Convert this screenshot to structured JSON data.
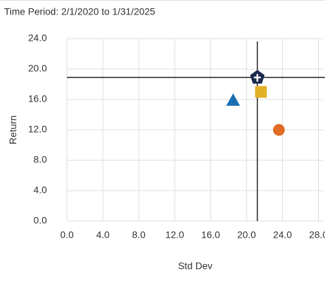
{
  "chart_data": {
    "type": "scatter",
    "subtitle": "Time Period: 2/1/2020 to 1/31/2025",
    "x_label": "Std Dev",
    "y_label": "Return",
    "xlim": [
      0,
      28.5
    ],
    "ylim": [
      0,
      24
    ],
    "xticks": [
      {
        "value": 0,
        "label": "0.0"
      },
      {
        "value": 4,
        "label": "4.0"
      },
      {
        "value": 8,
        "label": "8.0"
      },
      {
        "value": 12,
        "label": "12.0"
      },
      {
        "value": 16,
        "label": "16.0"
      },
      {
        "value": 20,
        "label": "20.0"
      },
      {
        "value": 24,
        "label": "24.0"
      },
      {
        "value": 28,
        "label": "28.0"
      }
    ],
    "yticks": [
      {
        "value": 0,
        "label": "0.0"
      },
      {
        "value": 4,
        "label": "4.0"
      },
      {
        "value": 8,
        "label": "8.0"
      },
      {
        "value": 12,
        "label": "12.0"
      },
      {
        "value": 16,
        "label": "16.0"
      },
      {
        "value": 20,
        "label": "20.0"
      },
      {
        "value": 24,
        "label": "24.0"
      }
    ],
    "grid": true,
    "crosshair_series": 0,
    "series": [
      {
        "color": "#1c2a4e",
        "marker": "pentagon-cross",
        "x": [
          21.2
        ],
        "values": [
          18.9
        ]
      },
      {
        "color": "#1a6fb3",
        "marker": "triangle",
        "x": [
          18.5
        ],
        "values": [
          15.9
        ]
      },
      {
        "color": "#e2b127",
        "marker": "square",
        "x": [
          21.6
        ],
        "values": [
          17.0
        ]
      },
      {
        "color": "#e06c25",
        "marker": "circle",
        "x": [
          23.6
        ],
        "values": [
          12.0
        ]
      }
    ]
  }
}
